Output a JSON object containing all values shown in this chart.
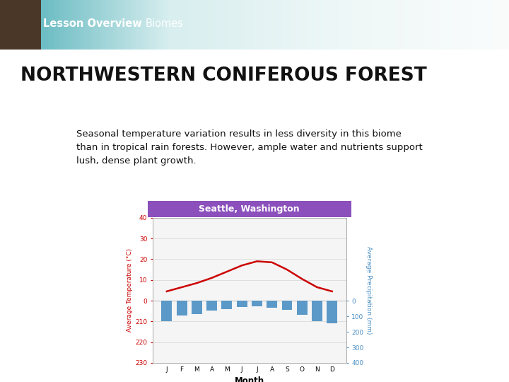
{
  "header_text1": "Lesson Overview",
  "header_text2": "Biomes",
  "title": "NORTHWESTERN CONIFEROUS FOREST",
  "body_text": "Seasonal temperature variation results in less diversity in this biome\nthan in tropical rain forests. However, ample water and nutrients support\nlush, dense plant growth.",
  "chart_title": "Seattle, Washington",
  "chart_title_bg": "#8B50BC",
  "chart_title_color": "#FFFFFF",
  "months": [
    "J",
    "F",
    "M",
    "A",
    "M",
    "J",
    "J",
    "A",
    "S",
    "O",
    "N",
    "D"
  ],
  "temperature": [
    4.5,
    6.5,
    8.5,
    11.0,
    14.0,
    17.0,
    19.0,
    18.5,
    15.0,
    10.5,
    6.5,
    4.5
  ],
  "precipitation": [
    130,
    95,
    85,
    65,
    55,
    40,
    35,
    45,
    60,
    90,
    130,
    145
  ],
  "temp_color": "#CC0000",
  "precip_color": "#4A8FC4",
  "temp_ylabel": "Average Temperature (°C)",
  "precip_ylabel": "Average Precipitation (mm)",
  "month_xlabel": "Month",
  "temp_ylim_min": -30,
  "temp_ylim_max": 40,
  "precip_ylim_min": 0,
  "precip_ylim_max": 400,
  "header_teal": "#4AADB6",
  "header_light": "#D8EEEF",
  "bg_color": "#FFFFFF",
  "chart_bg": "#F5F5F5",
  "owl_color": "#4A3728"
}
